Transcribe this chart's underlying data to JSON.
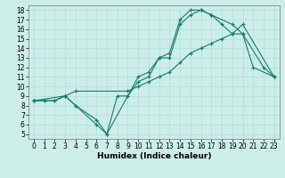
{
  "xlabel": "Humidex (Indice chaleur)",
  "background_color": "#cceee8",
  "line_color": "#1a7a6e",
  "xlim": [
    -0.5,
    23.5
  ],
  "ylim": [
    4.5,
    18.5
  ],
  "xticks": [
    0,
    1,
    2,
    3,
    4,
    5,
    6,
    7,
    8,
    9,
    10,
    11,
    12,
    13,
    14,
    15,
    16,
    17,
    18,
    19,
    20,
    21,
    22,
    23
  ],
  "yticks": [
    5,
    6,
    7,
    8,
    9,
    10,
    11,
    12,
    13,
    14,
    15,
    16,
    17,
    18
  ],
  "line1_x": [
    0,
    1,
    2,
    3,
    4,
    6,
    7,
    8,
    9,
    10,
    11,
    12,
    13,
    14,
    15,
    16,
    17,
    19,
    20,
    21,
    23
  ],
  "line1_y": [
    8.5,
    8.5,
    8.5,
    9.0,
    8.0,
    6.5,
    5.0,
    9.0,
    9.0,
    11.0,
    11.5,
    13.0,
    13.0,
    16.5,
    17.5,
    18.0,
    17.5,
    16.5,
    15.5,
    12.0,
    11.0
  ],
  "line2_x": [
    0,
    1,
    2,
    3,
    4,
    9,
    10,
    11,
    12,
    13,
    14,
    15,
    16,
    17,
    18,
    19,
    20,
    23
  ],
  "line2_y": [
    8.5,
    8.5,
    8.5,
    9.0,
    9.5,
    9.5,
    10.0,
    10.5,
    11.0,
    11.5,
    12.5,
    13.5,
    14.0,
    14.5,
    15.0,
    15.5,
    16.5,
    11.0
  ],
  "line3_x": [
    0,
    3,
    4,
    6,
    7,
    9,
    10,
    11,
    12,
    13,
    14,
    15,
    16,
    17,
    18,
    19,
    20,
    22,
    23
  ],
  "line3_y": [
    8.5,
    9.0,
    8.0,
    6.0,
    5.0,
    9.0,
    10.5,
    11.0,
    13.0,
    13.5,
    17.0,
    18.0,
    18.0,
    17.5,
    16.5,
    15.5,
    15.5,
    12.0,
    11.0
  ],
  "grid_color": "#b0ddd8",
  "spine_color": "#888888",
  "tick_fontsize": 5.5,
  "xlabel_fontsize": 6.5
}
